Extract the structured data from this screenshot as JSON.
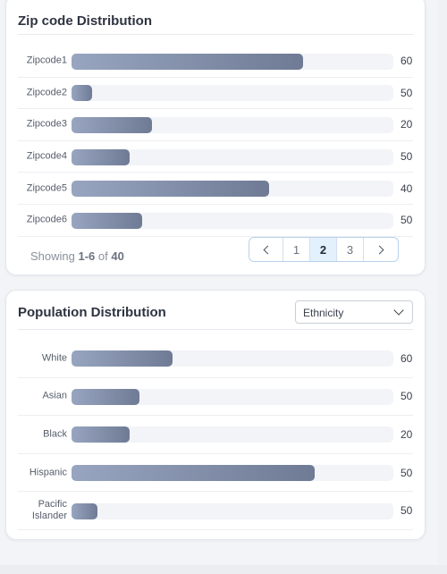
{
  "zip_card": {
    "title": "Zip code Distribution",
    "rows": [
      {
        "label": "Zipcode1",
        "value": "60",
        "fill": 0.72
      },
      {
        "label": "Zipcode2",
        "value": "50",
        "fill": 0.065
      },
      {
        "label": "Zipcode3",
        "value": "20",
        "fill": 0.25
      },
      {
        "label": "Zipcode4",
        "value": "50",
        "fill": 0.18
      },
      {
        "label": "Zipcode5",
        "value": "40",
        "fill": 0.615
      },
      {
        "label": "Zipcode6",
        "value": "50",
        "fill": 0.22
      }
    ],
    "showing": {
      "prefix": "Showing ",
      "range": "1-6",
      "of": " of ",
      "total": "40"
    },
    "pagination": {
      "pages": [
        "1",
        "2",
        "3"
      ],
      "current": "2"
    }
  },
  "pop_card": {
    "title": "Population Distribution",
    "dropdown": {
      "value": "Ethnicity",
      "icon": "chevron-down-icon"
    },
    "rows": [
      {
        "label": "White",
        "value": "60",
        "fill": 0.315
      },
      {
        "label": "Asian",
        "value": "50",
        "fill": 0.21
      },
      {
        "label": "Black",
        "value": "20",
        "fill": 0.18
      },
      {
        "label": "Hispanic",
        "value": "50",
        "fill": 0.755
      },
      {
        "label": "Pacific\nIslander",
        "value": "50",
        "fill": 0.08
      }
    ]
  },
  "colors": {
    "bar_start": "#98a5c0",
    "bar_end": "#6f7b95",
    "track": "#f3f4f7",
    "active_page": "#e3f1fd",
    "pager_border": "#b9d3ee"
  }
}
